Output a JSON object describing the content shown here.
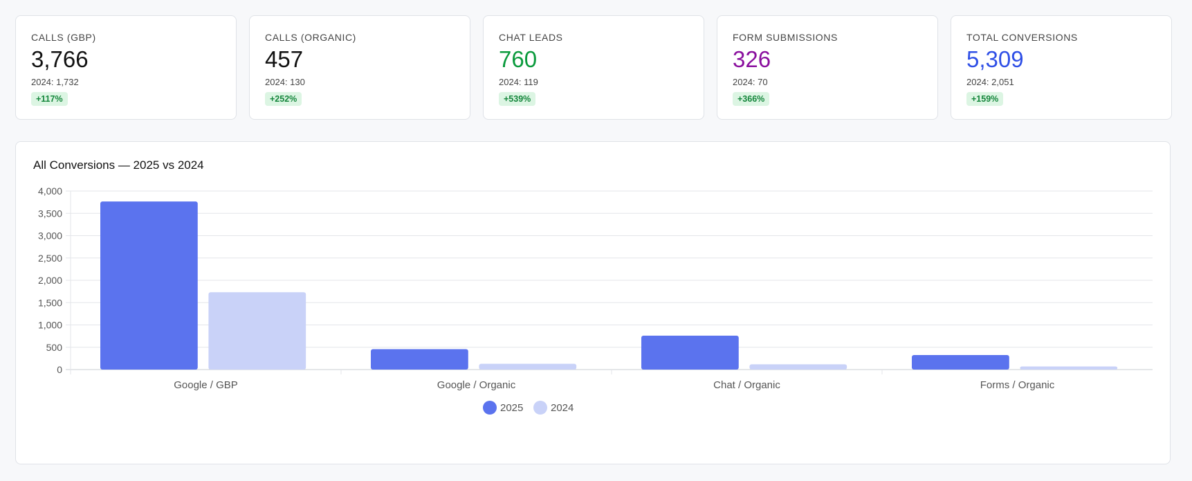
{
  "kpis": [
    {
      "label": "CALLS (GBP)",
      "value": "3,766",
      "prev": "2024: 1,732",
      "change": "+117%",
      "color": "#111111"
    },
    {
      "label": "CALLS (ORGANIC)",
      "value": "457",
      "prev": "2024: 130",
      "change": "+252%",
      "color": "#111111"
    },
    {
      "label": "CHAT LEADS",
      "value": "760",
      "prev": "2024: 119",
      "change": "+539%",
      "color": "#0a9a3c"
    },
    {
      "label": "FORM SUBMISSIONS",
      "value": "326",
      "prev": "2024: 70",
      "change": "+366%",
      "color": "#8a0f9e"
    },
    {
      "label": "TOTAL CONVERSIONS",
      "value": "5,309",
      "prev": "2024: 2,051",
      "change": "+159%",
      "color": "#2f4fe6"
    }
  ],
  "chart_data": {
    "type": "bar",
    "title": "All Conversions — 2025 vs 2024",
    "categories": [
      "Google / GBP",
      "Google / Organic",
      "Chat / Organic",
      "Forms / Organic"
    ],
    "series": [
      {
        "name": "2025",
        "values": [
          3766,
          457,
          760,
          326
        ],
        "color": "#5b73ee"
      },
      {
        "name": "2024",
        "values": [
          1732,
          130,
          119,
          70
        ],
        "color": "#c9d2f8"
      }
    ],
    "yticks": [
      "0",
      "500",
      "1,000",
      "1,500",
      "2,000",
      "2,500",
      "3,000",
      "3,500",
      "4,000"
    ],
    "ylim": [
      0,
      4000
    ],
    "xlabel": "",
    "ylabel": "",
    "legend": "bottom-center",
    "grid": true
  }
}
